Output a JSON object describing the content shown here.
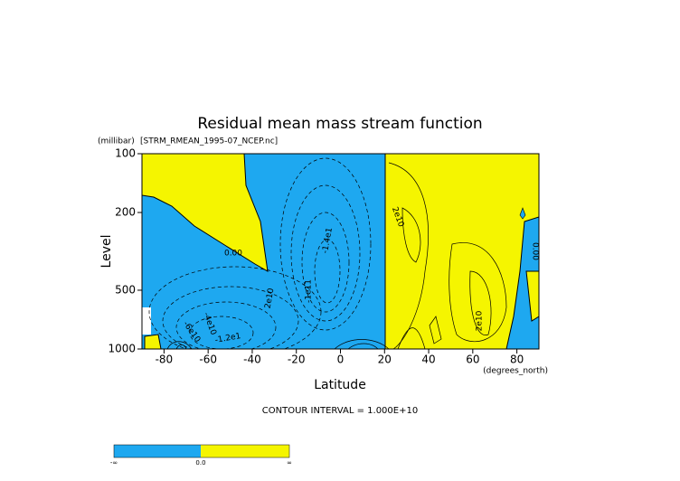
{
  "chart_data": {
    "type": "contour",
    "title": "Residual mean mass stream function",
    "subtitle": "[STRM_RMEAN_1995-07_NCEP.nc]",
    "x_label": "Latitude",
    "x_units": "(degrees_north)",
    "y_label": "Level",
    "y_units": "(millibar)",
    "xlim": [
      -90,
      90
    ],
    "xticks": [
      -80,
      -60,
      -40,
      -20,
      0,
      20,
      40,
      60,
      80
    ],
    "ylim": [
      100,
      1000
    ],
    "yticks": [
      100,
      200,
      500,
      1000
    ],
    "y_log": true,
    "y_inverted": true,
    "negative_color": "#1ea8f0",
    "positive_color": "#f5f500",
    "footnote": "CONTOUR INTERVAL = 1.000E+10",
    "colorbar_labels": [
      "-∞",
      "0.0",
      "∞"
    ],
    "contour_labels": [
      "0.00",
      "-1.4e1",
      "2e10",
      "2e10",
      "2e10",
      "0.00",
      "-4e10",
      "-6e10",
      "-1.2e1",
      "-1e11"
    ]
  }
}
